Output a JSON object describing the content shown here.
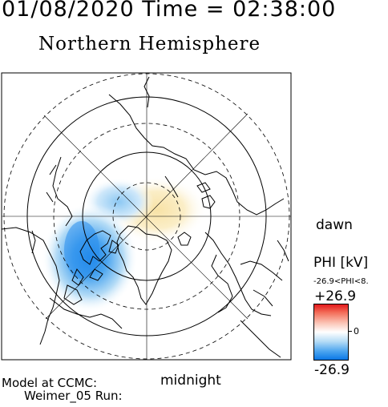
{
  "header": {
    "datetime": "01/08/2020 Time = 02:38:00"
  },
  "map": {
    "title": "Northern Hemisphere",
    "dawn_label": "dawn",
    "midnight_label": "midnight"
  },
  "colorbar": {
    "quantity_label": "PHI [kV]",
    "range_text": "-26.9<PHI<8.",
    "max_label": "+26.9",
    "zero_label": "0",
    "min_label": "-26.9",
    "colors": [
      "#e3191c",
      "#ffffff",
      "#0a78e6"
    ]
  },
  "footer": {
    "model_label": "Model at CCMC:",
    "run_label": "Weimer_05 Run:"
  }
}
